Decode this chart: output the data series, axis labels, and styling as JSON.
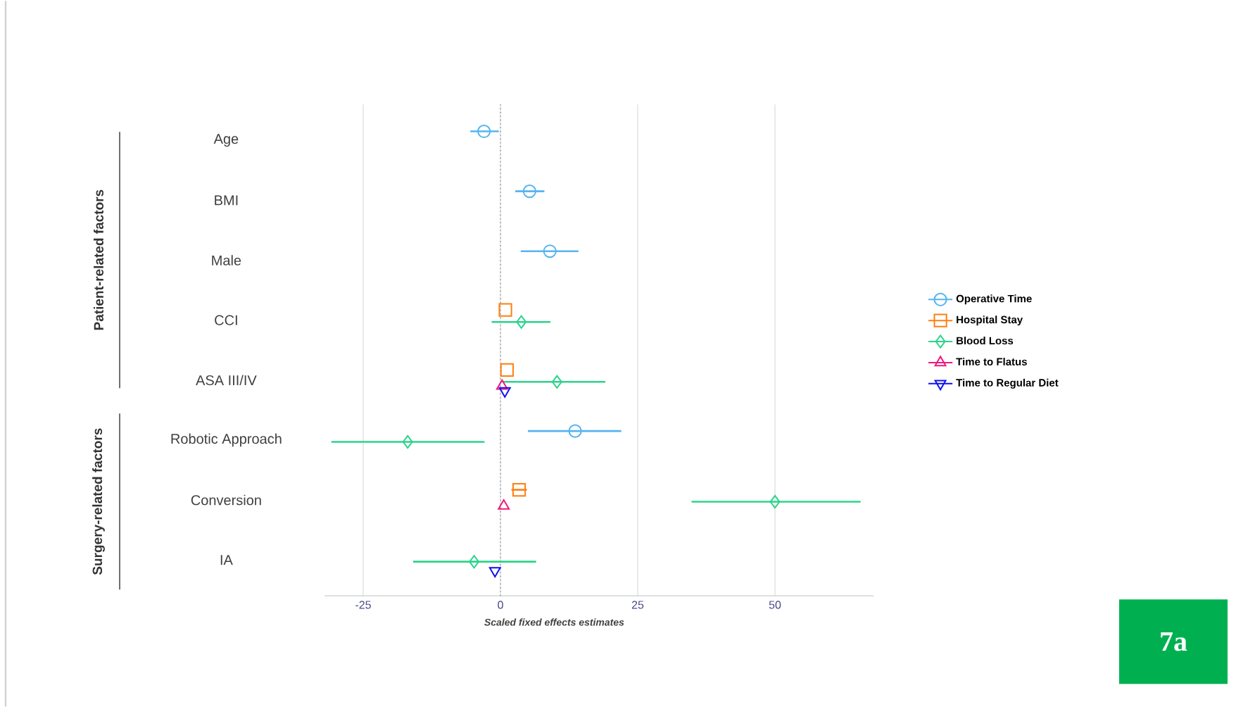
{
  "chart_data": {
    "type": "scatter",
    "orientation": "horizontal",
    "xlabel": "Scaled fixed effects estimates",
    "categories": [
      "Age",
      "BMI",
      "Male",
      "CCI",
      "ASA III/IV",
      "Robotic Approach",
      "Conversion",
      "IA"
    ],
    "xlim": [
      -32,
      68
    ],
    "xticks": [
      -25,
      0,
      25,
      50
    ],
    "grid": "x",
    "legend": "right",
    "ref_lines": [
      {
        "axis": "x",
        "value": 0,
        "line_style": "dotted",
        "color": "#888888"
      }
    ],
    "annotations": [
      "Patient-related factors",
      "Surgery-related factors",
      "7a"
    ],
    "series": [
      {
        "name": "Operative Time",
        "color": "#55b4f0",
        "marker": "circle",
        "values": [
          -3,
          5.3,
          9,
          null,
          null,
          13.6,
          null,
          null
        ],
        "errors": [
          [
            -5.5,
            -0.3
          ],
          [
            2.7,
            8
          ],
          [
            3.7,
            14.2
          ],
          null,
          null,
          [
            5,
            22
          ],
          null,
          null
        ]
      },
      {
        "name": "Hospital Stay",
        "color": "#ff7f0e",
        "marker": "square",
        "values": [
          null,
          null,
          null,
          0.9,
          1.2,
          null,
          3.4,
          null
        ],
        "errors": [
          null,
          null,
          null,
          null,
          null,
          null,
          [
            2,
            4.8
          ],
          null
        ]
      },
      {
        "name": "Blood Loss",
        "color": "#2ed38c",
        "marker": "diamond",
        "values": [
          null,
          null,
          null,
          3.8,
          10.3,
          -16.9,
          50,
          -4.8
        ],
        "errors": [
          null,
          null,
          null,
          [
            -1.6,
            9.1
          ],
          [
            0.3,
            19.1
          ],
          [
            -30.8,
            -2.9
          ],
          [
            34.8,
            65.6
          ],
          [
            -15.9,
            6.5
          ]
        ]
      },
      {
        "name": "Time to Flatus",
        "color": "#f0197d",
        "marker": "triangle",
        "values": [
          null,
          null,
          null,
          null,
          0.3,
          null,
          0.6,
          null
        ]
      },
      {
        "name": "Time to Regular Diet",
        "color": "#1010ee",
        "marker": "triangle-down",
        "values": [
          null,
          null,
          null,
          null,
          0.8,
          null,
          null,
          -1
        ]
      }
    ]
  }
}
